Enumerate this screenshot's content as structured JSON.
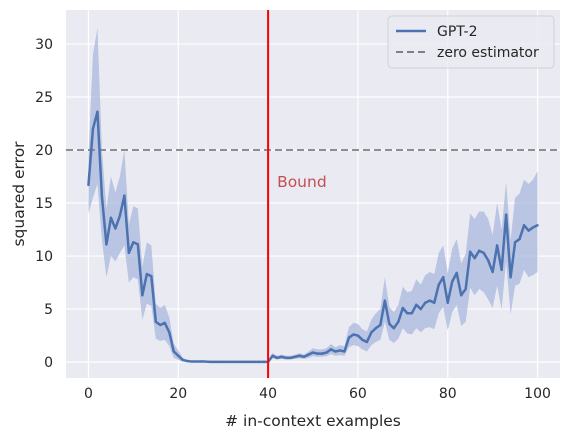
{
  "chart_data": {
    "type": "line",
    "xlabel": "# in-context examples",
    "ylabel": "squared error",
    "xlim": [
      -5,
      105
    ],
    "ylim": [
      -1.5,
      33.2
    ],
    "x_ticks": [
      0,
      20,
      40,
      60,
      80,
      100
    ],
    "y_ticks": [
      0,
      5,
      10,
      15,
      20,
      25,
      30
    ],
    "grid": true,
    "legend_position": "top-right",
    "colors": {
      "background": "#eaeaf2",
      "grid": "#ffffff",
      "series": "#4c72b0",
      "band": "#a8b8dc",
      "baseline": "#808080",
      "bound_line": "#ff0000",
      "bound_text": "#c44e52"
    },
    "series": [
      {
        "name": "GPT-2",
        "style": "solid",
        "x": [
          0,
          1,
          2,
          3,
          4,
          5,
          6,
          7,
          8,
          9,
          10,
          11,
          12,
          13,
          14,
          15,
          16,
          17,
          18,
          19,
          20,
          21,
          22,
          23,
          24,
          25,
          26,
          27,
          28,
          29,
          30,
          31,
          32,
          33,
          34,
          35,
          36,
          37,
          38,
          39,
          40,
          41,
          42,
          43,
          44,
          45,
          46,
          47,
          48,
          49,
          50,
          51,
          52,
          53,
          54,
          55,
          56,
          57,
          58,
          59,
          60,
          61,
          62,
          63,
          64,
          65,
          66,
          67,
          68,
          69,
          70,
          71,
          72,
          73,
          74,
          75,
          76,
          77,
          78,
          79,
          80,
          81,
          82,
          83,
          84,
          85,
          86,
          87,
          88,
          89,
          90,
          91,
          92,
          93,
          94,
          95,
          96,
          97,
          98,
          99,
          100
        ],
        "y": [
          16.7,
          22.0,
          23.6,
          15.6,
          11.1,
          13.6,
          12.6,
          13.8,
          15.7,
          10.3,
          11.3,
          11.1,
          6.3,
          8.3,
          8.1,
          3.8,
          3.5,
          3.7,
          2.8,
          1.0,
          0.6,
          0.2,
          0.1,
          0.05,
          0.05,
          0.05,
          0.05,
          0.02,
          0.02,
          0.02,
          0.02,
          0.02,
          0.02,
          0.02,
          0.02,
          0.02,
          0.02,
          0.02,
          0.02,
          0.02,
          0.02,
          0.6,
          0.4,
          0.5,
          0.4,
          0.4,
          0.5,
          0.6,
          0.5,
          0.7,
          0.9,
          0.8,
          0.8,
          0.9,
          1.2,
          1.0,
          1.1,
          1.0,
          2.3,
          2.6,
          2.5,
          2.1,
          1.9,
          2.8,
          3.2,
          3.5,
          5.8,
          3.6,
          3.2,
          3.8,
          5.1,
          4.6,
          4.6,
          5.4,
          5.0,
          5.6,
          5.8,
          5.6,
          7.3,
          8.0,
          5.6,
          7.6,
          8.4,
          6.3,
          6.9,
          10.4,
          9.8,
          10.5,
          10.3,
          9.6,
          8.5,
          11.0,
          8.7,
          13.9,
          8.0,
          11.3,
          11.6,
          12.9,
          12.4,
          12.7,
          12.9
        ],
        "lower": [
          14.0,
          15.5,
          16.8,
          11.5,
          8.0,
          10.0,
          9.5,
          10.3,
          11.0,
          7.5,
          8.0,
          7.8,
          4.0,
          5.5,
          5.3,
          2.2,
          2.0,
          2.1,
          1.5,
          0.4,
          0.2,
          0.05,
          0.0,
          0.0,
          0.0,
          0.0,
          0.0,
          0.0,
          0.0,
          0.0,
          0.0,
          0.0,
          0.0,
          0.0,
          0.0,
          0.0,
          0.0,
          0.0,
          0.0,
          0.0,
          0.0,
          0.35,
          0.25,
          0.3,
          0.25,
          0.25,
          0.3,
          0.35,
          0.3,
          0.4,
          0.55,
          0.5,
          0.5,
          0.55,
          0.75,
          0.6,
          0.65,
          0.6,
          1.4,
          1.6,
          1.5,
          1.2,
          1.0,
          1.6,
          1.9,
          2.1,
          3.8,
          2.1,
          1.8,
          2.2,
          3.2,
          2.7,
          2.6,
          3.2,
          2.8,
          3.2,
          3.3,
          3.1,
          4.6,
          5.2,
          3.0,
          4.7,
          5.4,
          3.4,
          3.8,
          7.0,
          6.3,
          6.9,
          6.6,
          5.9,
          5.1,
          7.2,
          5.0,
          9.5,
          4.5,
          7.2,
          7.4,
          8.7,
          8.0,
          8.2,
          8.5
        ],
        "upper": [
          19.5,
          29.0,
          31.5,
          20.0,
          14.5,
          17.5,
          16.0,
          17.5,
          20.0,
          13.0,
          14.7,
          14.5,
          9.0,
          11.3,
          11.0,
          5.5,
          5.1,
          5.4,
          4.2,
          1.7,
          1.1,
          0.4,
          0.2,
          0.12,
          0.1,
          0.1,
          0.1,
          0.05,
          0.05,
          0.05,
          0.05,
          0.05,
          0.05,
          0.05,
          0.05,
          0.05,
          0.05,
          0.05,
          0.05,
          0.05,
          0.05,
          0.85,
          0.6,
          0.7,
          0.6,
          0.6,
          0.7,
          0.85,
          0.7,
          1.0,
          1.3,
          1.2,
          1.2,
          1.3,
          1.7,
          1.4,
          1.6,
          1.5,
          3.3,
          3.7,
          3.6,
          3.1,
          2.9,
          4.0,
          4.6,
          5.0,
          8.0,
          5.2,
          4.7,
          5.4,
          7.1,
          6.6,
          6.7,
          7.8,
          7.3,
          8.2,
          8.5,
          8.3,
          10.3,
          11.0,
          8.4,
          10.7,
          11.6,
          9.3,
          10.2,
          14.0,
          13.5,
          14.2,
          14.2,
          13.5,
          12.0,
          15.0,
          12.5,
          17.0,
          11.5,
          15.5,
          15.9,
          17.2,
          16.8,
          17.2,
          18.0
        ]
      },
      {
        "name": "zero estimator",
        "style": "dashed",
        "y_constant": 20
      }
    ],
    "vline": {
      "x": 40
    },
    "annotation": {
      "text": "Bound",
      "x": 42,
      "y": 17
    }
  }
}
